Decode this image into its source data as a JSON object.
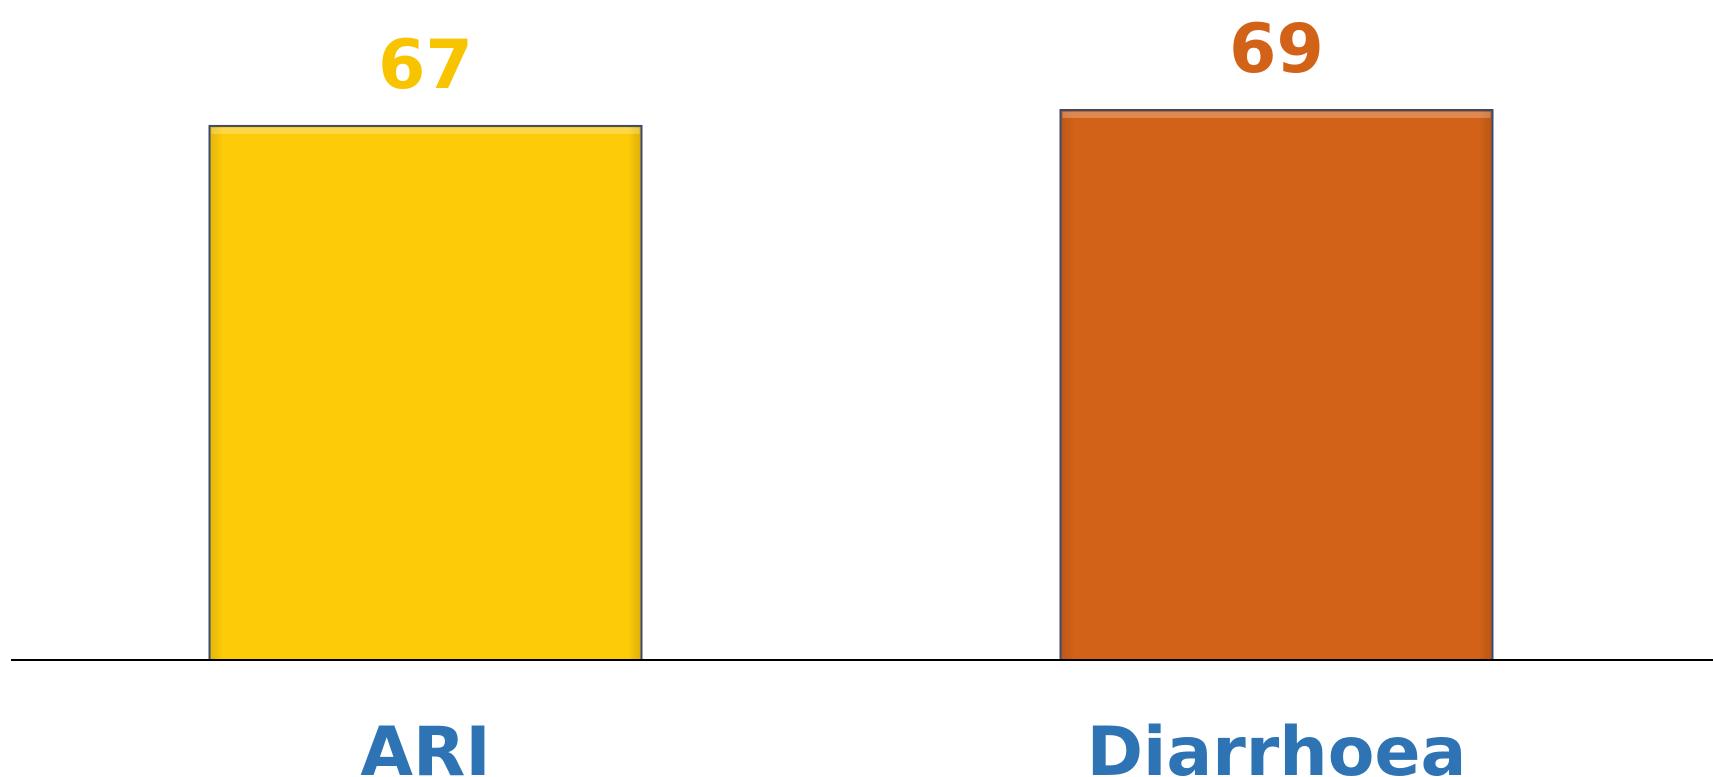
{
  "chart_data": {
    "type": "bar",
    "categories": [
      "ARI",
      "Diarrhoea"
    ],
    "values": [
      67,
      69
    ],
    "title": "",
    "xlabel": "",
    "ylabel": "",
    "ylim": [
      0,
      69
    ],
    "grid": false,
    "legend": "none",
    "colors": {
      "bars": [
        "#FDCB08",
        "#D26217"
      ],
      "data_labels": [
        "#F8C400",
        "#D26217"
      ],
      "category_labels": "#2E74B5",
      "axis": "#000000",
      "bar_border": "#3A4B73"
    }
  }
}
